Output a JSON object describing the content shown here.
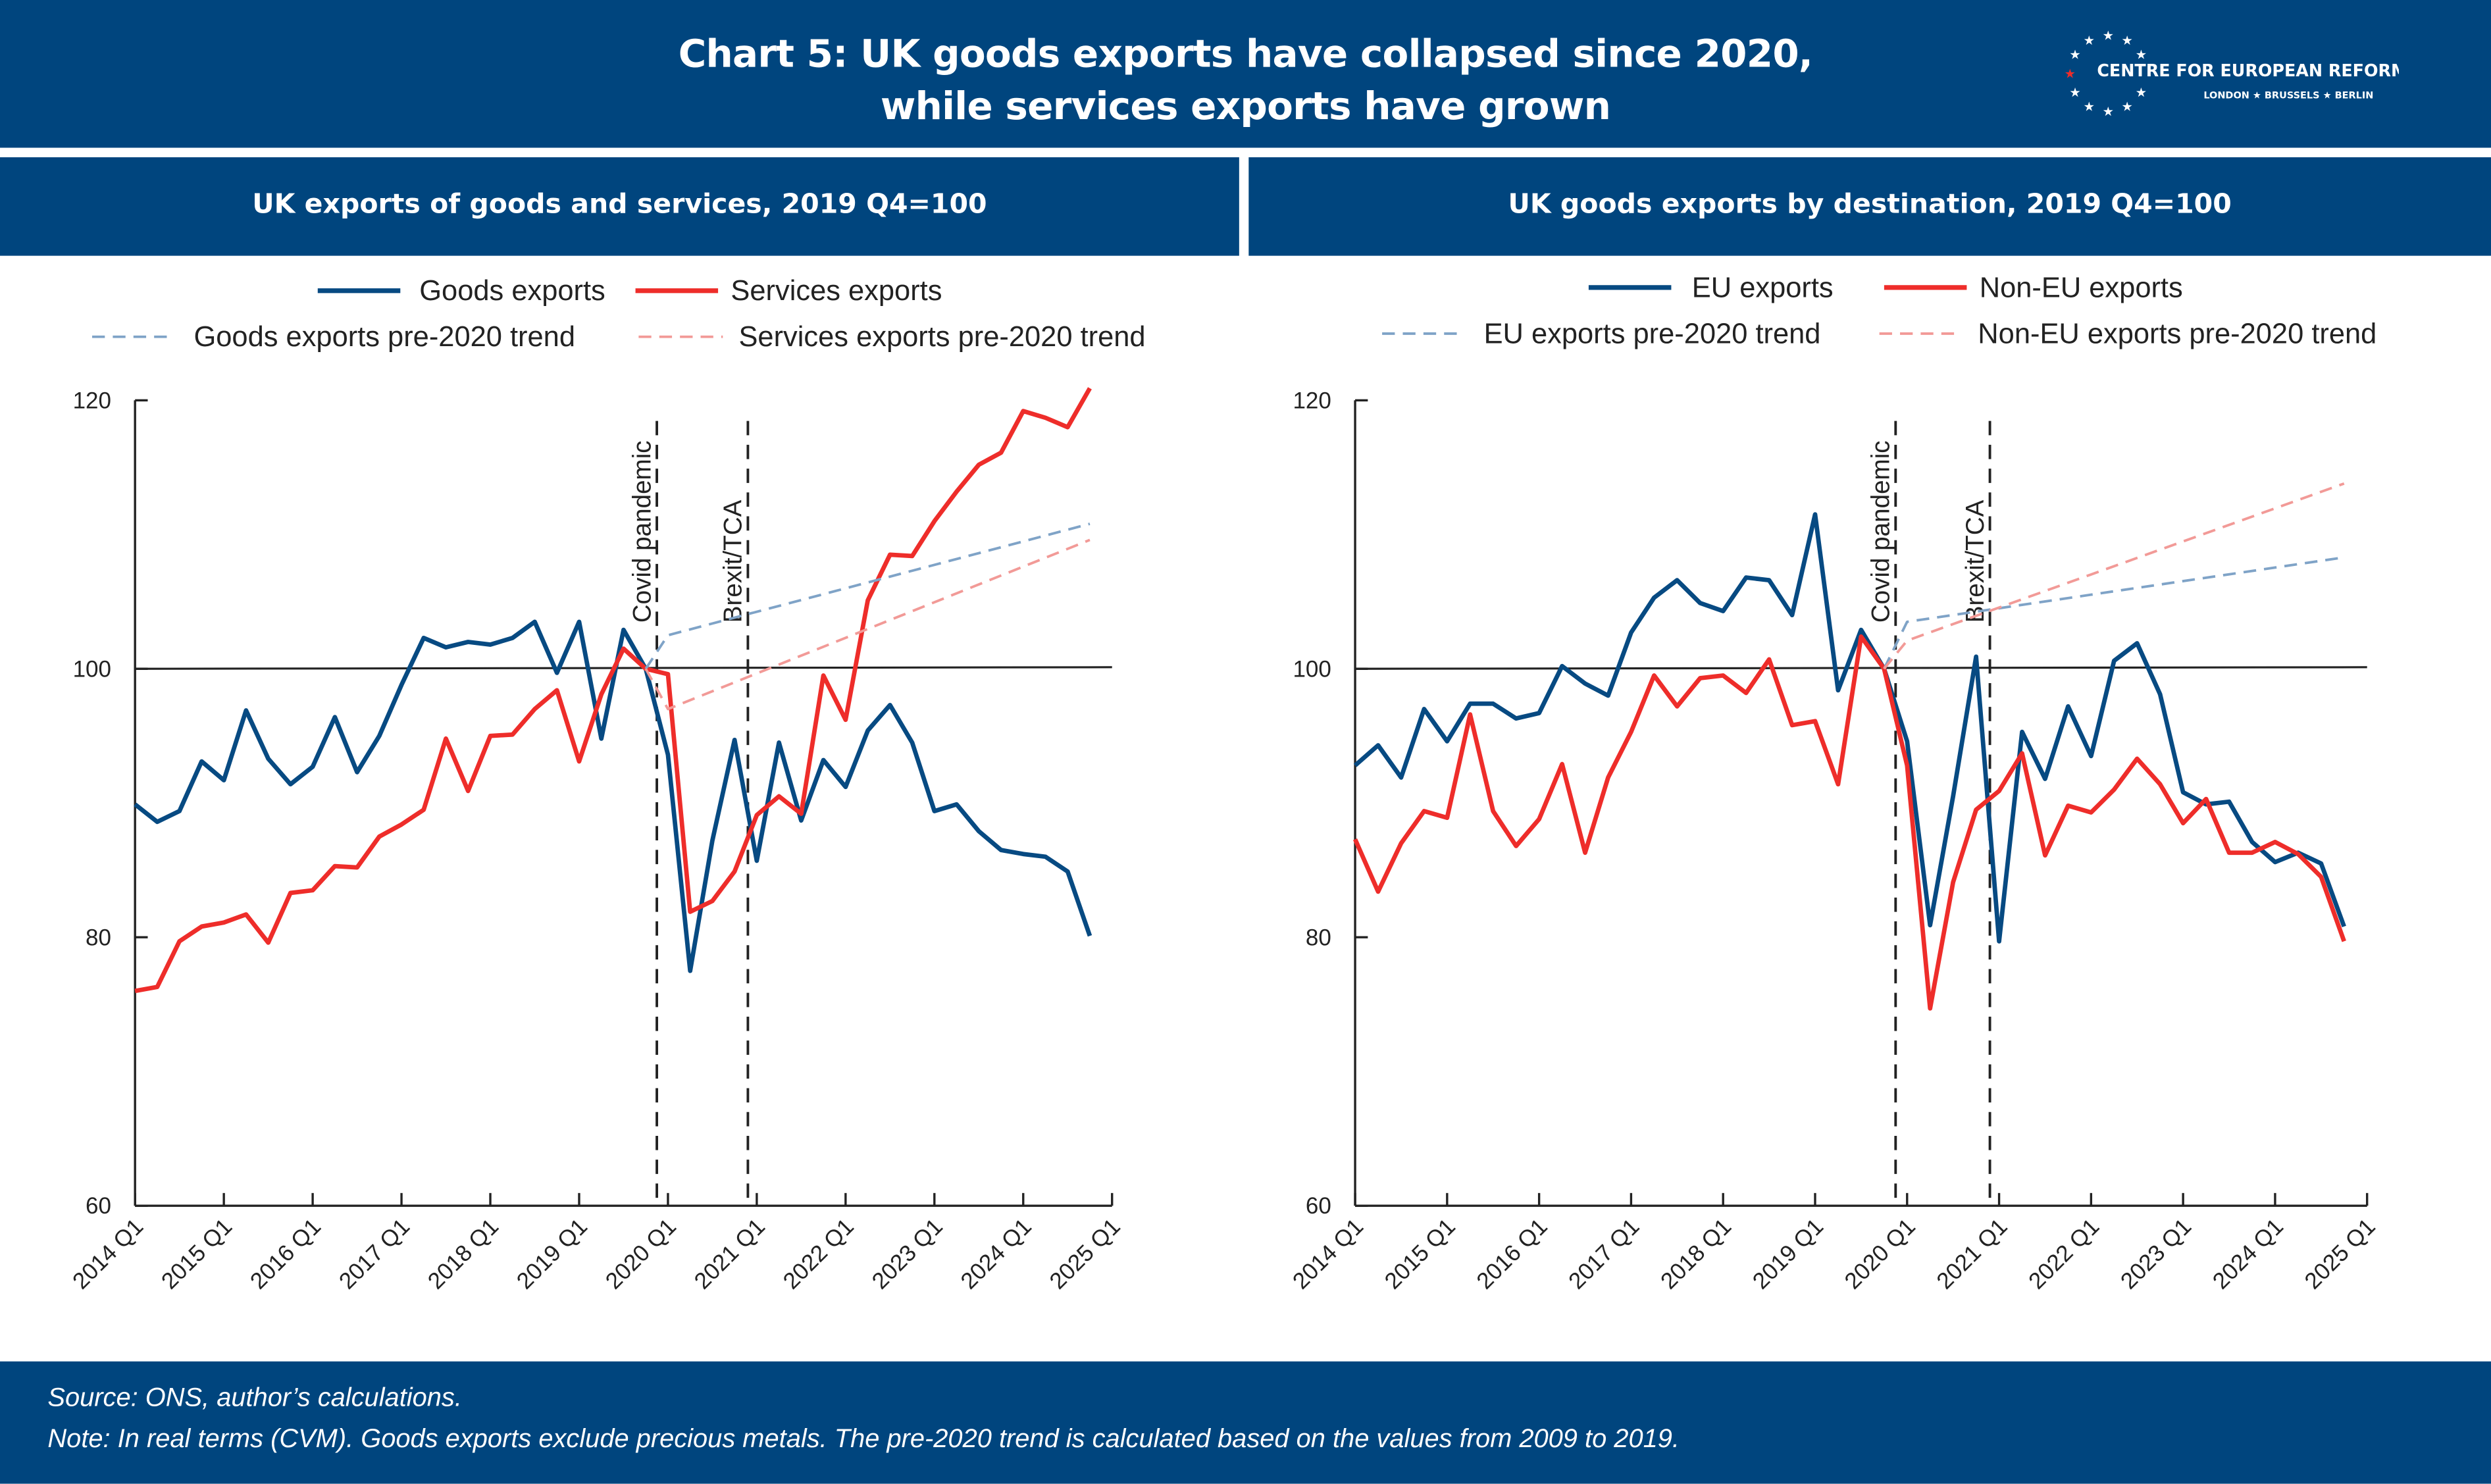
{
  "header": {
    "title_line1": "Chart 5: UK goods exports have collapsed since 2020,",
    "title_line2": "while services exports have grown",
    "logo_text": "CENTRE FOR EUROPEAN REFORM",
    "logo_cities": "LONDON ★ BRUSSELS ★ BERLIN"
  },
  "footer": {
    "source": "Source: ONS, author’s calculations.",
    "note": "Note: In real terms (CVM). Goods exports exclude precious metals. The pre-2020 trend is calculated based on the values from 2009 to 2019."
  },
  "colors": {
    "band": "#00457e",
    "blue": "#074a82",
    "red": "#ee2d2a",
    "blue_trend": "#7fa3c7",
    "red_trend": "#f29a97"
  },
  "chart_data": [
    {
      "type": "line",
      "title": "UK exports of goods and services, 2019 Q4=100",
      "ylim": [
        60,
        120
      ],
      "yticks": [
        "60",
        "80",
        "100",
        "120"
      ],
      "xticks": [
        "2014 Q1",
        "2015 Q1",
        "2016 Q1",
        "2017 Q1",
        "2018 Q1",
        "2019 Q1",
        "2020 Q1",
        "2021 Q1",
        "2022 Q1",
        "2023 Q1",
        "2024 Q1",
        "2025 Q1"
      ],
      "reference_line": 100,
      "legend_position": "top",
      "annotations": [
        "Covid pandemic",
        "Brexit/TCA"
      ],
      "x": [
        "2014 Q1",
        "2014 Q2",
        "2014 Q3",
        "2014 Q4",
        "2015 Q1",
        "2015 Q2",
        "2015 Q3",
        "2015 Q4",
        "2016 Q1",
        "2016 Q2",
        "2016 Q3",
        "2016 Q4",
        "2017 Q1",
        "2017 Q2",
        "2017 Q3",
        "2017 Q4",
        "2018 Q1",
        "2018 Q2",
        "2018 Q3",
        "2018 Q4",
        "2019 Q1",
        "2019 Q2",
        "2019 Q3",
        "2019 Q4",
        "2020 Q1",
        "2020 Q2",
        "2020 Q3",
        "2020 Q4",
        "2021 Q1",
        "2021 Q2",
        "2021 Q3",
        "2021 Q4",
        "2022 Q1",
        "2022 Q2",
        "2022 Q3",
        "2022 Q4",
        "2023 Q1",
        "2023 Q2",
        "2023 Q3",
        "2023 Q4",
        "2024 Q1",
        "2024 Q2",
        "2024 Q3",
        "2024 Q4"
      ],
      "series": [
        {
          "name": "Goods exports",
          "style": "solid",
          "color": "#074a82",
          "values": [
            89.9,
            88.6,
            89.4,
            93.1,
            91.7,
            96.9,
            93.3,
            91.4,
            92.7,
            96.4,
            92.3,
            95.0,
            98.8,
            102.3,
            101.6,
            102.0,
            101.8,
            102.3,
            103.5,
            99.7,
            103.5,
            94.8,
            102.9,
            100.0,
            93.6,
            77.5,
            87.2,
            94.7,
            85.7,
            94.5,
            88.7,
            93.2,
            91.2,
            95.4,
            97.3,
            94.5,
            89.4,
            89.9,
            87.9,
            86.5,
            86.2,
            86.0,
            84.9,
            80.1
          ]
        },
        {
          "name": "Services exports",
          "style": "solid",
          "color": "#ee2d2a",
          "values": [
            76.0,
            76.3,
            79.7,
            80.8,
            81.1,
            81.7,
            79.6,
            83.3,
            83.5,
            85.3,
            85.2,
            87.5,
            88.4,
            89.5,
            94.8,
            90.9,
            95.0,
            95.1,
            97.0,
            98.4,
            93.1,
            98.1,
            101.5,
            100.0,
            99.6,
            81.9,
            82.7,
            84.9,
            89.1,
            90.5,
            89.2,
            99.5,
            96.2,
            105.1,
            108.5,
            108.4,
            111.0,
            113.2,
            115.2,
            116.1,
            119.2,
            118.7,
            118.0,
            120.9
          ]
        },
        {
          "name": "Goods exports pre-2020 trend",
          "style": "dashed",
          "color": "#7fa3c7",
          "points": [
            [
              "2019 Q4",
              100.0
            ],
            [
              "2020 Q1",
              102.5
            ],
            [
              "2024 Q4",
              110.8
            ]
          ]
        },
        {
          "name": "Services exports pre-2020 trend",
          "style": "dashed",
          "color": "#f29a97",
          "points": [
            [
              "2019 Q4",
              100.0
            ],
            [
              "2020 Q1",
              97.0
            ],
            [
              "2024 Q4",
              109.6
            ]
          ]
        }
      ]
    },
    {
      "type": "line",
      "title": "UK goods exports by destination, 2019 Q4=100",
      "ylim": [
        60,
        120
      ],
      "yticks": [
        "60",
        "80",
        "100",
        "120"
      ],
      "xticks": [
        "2014 Q1",
        "2015 Q1",
        "2016 Q1",
        "2017 Q1",
        "2018 Q1",
        "2019 Q1",
        "2020 Q1",
        "2021 Q1",
        "2022 Q1",
        "2023 Q1",
        "2024 Q1",
        "2025 Q1"
      ],
      "reference_line": 100,
      "legend_position": "top",
      "annotations": [
        "Covid pandemic",
        "Brexit/TCA"
      ],
      "x": [
        "2014 Q1",
        "2014 Q2",
        "2014 Q3",
        "2014 Q4",
        "2015 Q1",
        "2015 Q2",
        "2015 Q3",
        "2015 Q4",
        "2016 Q1",
        "2016 Q2",
        "2016 Q3",
        "2016 Q4",
        "2017 Q1",
        "2017 Q2",
        "2017 Q3",
        "2017 Q4",
        "2018 Q1",
        "2018 Q2",
        "2018 Q3",
        "2018 Q4",
        "2019 Q1",
        "2019 Q2",
        "2019 Q3",
        "2019 Q4",
        "2020 Q1",
        "2020 Q2",
        "2020 Q3",
        "2020 Q4",
        "2021 Q1",
        "2021 Q2",
        "2021 Q3",
        "2021 Q4",
        "2022 Q1",
        "2022 Q2",
        "2022 Q3",
        "2022 Q4",
        "2023 Q1",
        "2023 Q2",
        "2023 Q3",
        "2023 Q4",
        "2024 Q1",
        "2024 Q2",
        "2024 Q3",
        "2024 Q4"
      ],
      "series": [
        {
          "name": "EU exports",
          "style": "solid",
          "color": "#074a82",
          "values": [
            92.8,
            94.3,
            91.9,
            97.0,
            94.6,
            97.4,
            97.4,
            96.3,
            96.7,
            100.2,
            98.9,
            98.0,
            102.7,
            105.3,
            106.6,
            104.9,
            104.3,
            106.8,
            106.6,
            104.0,
            111.5,
            98.4,
            102.9,
            100.0,
            94.6,
            80.9,
            90.5,
            100.9,
            79.7,
            95.3,
            91.8,
            97.2,
            93.5,
            100.6,
            101.9,
            98.1,
            90.8,
            89.9,
            90.1,
            87.1,
            85.6,
            86.3,
            85.5,
            80.8
          ]
        },
        {
          "name": "Non-EU exports",
          "style": "solid",
          "color": "#ee2d2a",
          "values": [
            87.3,
            83.4,
            87.0,
            89.4,
            88.9,
            96.6,
            89.4,
            86.8,
            88.8,
            92.9,
            86.3,
            91.9,
            95.3,
            99.5,
            97.2,
            99.3,
            99.5,
            98.2,
            100.7,
            95.8,
            96.1,
            91.4,
            102.4,
            100.0,
            92.8,
            74.7,
            84.1,
            89.5,
            90.9,
            93.7,
            86.1,
            89.8,
            89.3,
            91.0,
            93.3,
            91.4,
            88.5,
            90.3,
            86.3,
            86.3,
            87.1,
            86.2,
            84.5,
            79.7
          ]
        },
        {
          "name": "EU exports pre-2020 trend",
          "style": "dashed",
          "color": "#7fa3c7",
          "points": [
            [
              "2019 Q4",
              100.0
            ],
            [
              "2020 Q1",
              103.5
            ],
            [
              "2024 Q4",
              108.3
            ]
          ]
        },
        {
          "name": "Non-EU exports pre-2020 trend",
          "style": "dashed",
          "color": "#f29a97",
          "points": [
            [
              "2019 Q4",
              100.0
            ],
            [
              "2020 Q1",
              102.1
            ],
            [
              "2024 Q4",
              113.8
            ]
          ]
        }
      ]
    }
  ]
}
